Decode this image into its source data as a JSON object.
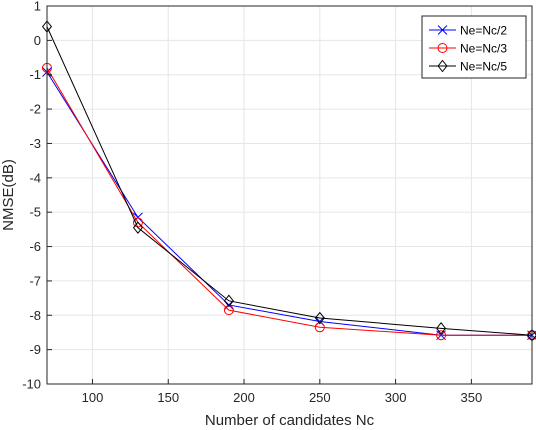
{
  "chart_data": {
    "type": "line",
    "title": "",
    "xlabel": "Number of candidates Nc",
    "ylabel": "NMSE(dB)",
    "xlim": [
      70,
      390
    ],
    "ylim": [
      -10,
      1
    ],
    "xticks": [
      100,
      150,
      200,
      250,
      300,
      350
    ],
    "yticks": [
      1,
      0,
      -1,
      -2,
      -3,
      -4,
      -5,
      -6,
      -7,
      -8,
      -9,
      -10
    ],
    "grid": true,
    "legend_position": "top-right",
    "x": [
      70,
      130,
      190,
      250,
      330,
      390
    ],
    "series": [
      {
        "name": "Ne=Nc/2",
        "color": "#0000ff",
        "marker": "x",
        "values": [
          -0.92,
          -5.15,
          -7.7,
          -8.18,
          -8.58,
          -8.58
        ]
      },
      {
        "name": "Ne=Nc/3",
        "color": "#ff0000",
        "marker": "circle",
        "values": [
          -0.8,
          -5.3,
          -7.85,
          -8.35,
          -8.58,
          -8.58
        ]
      },
      {
        "name": "Ne=Nc/5",
        "color": "#000000",
        "marker": "diamond",
        "values": [
          0.4,
          -5.45,
          -7.58,
          -8.08,
          -8.38,
          -8.58
        ]
      }
    ]
  }
}
